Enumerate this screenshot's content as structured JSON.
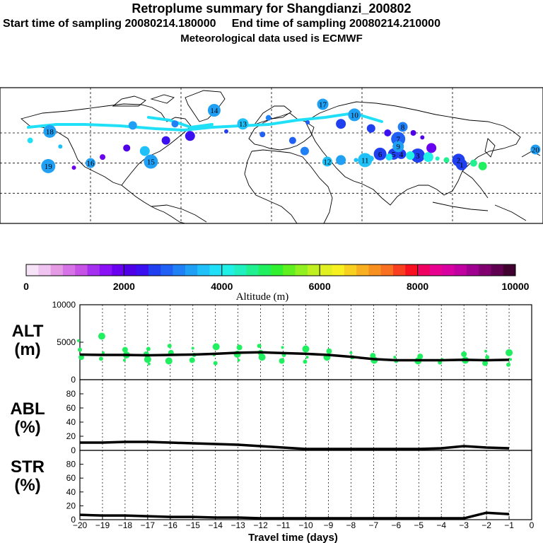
{
  "header": {
    "title": "Retroplume summary for Shangdianzi_200802",
    "sampling_line": "Start time of sampling 20080214.180000     End time of sampling 20080214.210000",
    "met_line": "Meteorological data used is ECMWF"
  },
  "colorbar": {
    "tick_labels": [
      "0",
      "2000",
      "4000",
      "6000",
      "8000",
      "10000"
    ],
    "label": "Altitude (m)",
    "colors": [
      "#f7e3f7",
      "#f0c4f0",
      "#e49be4",
      "#d673e6",
      "#c653e6",
      "#a630f0",
      "#8a10f5",
      "#6a00f0",
      "#5000e6",
      "#3a10f0",
      "#2040f0",
      "#2060f5",
      "#2080f5",
      "#20a0f5",
      "#20c0f8",
      "#20e0f8",
      "#20f0e6",
      "#20f0c0",
      "#20f090",
      "#20f060",
      "#30f030",
      "#60f020",
      "#90f020",
      "#c0f020",
      "#e0f020",
      "#f8f020",
      "#f8d020",
      "#f8b020",
      "#f89020",
      "#f87020",
      "#f84020",
      "#f81020",
      "#f00060",
      "#e80090",
      "#d800a0",
      "#c000a0",
      "#a00090",
      "#800070",
      "#600050",
      "#400030"
    ]
  },
  "map": {
    "cluster_labels": [
      {
        "t": "1",
        "lon": 126,
        "lat": 39
      },
      {
        "t": "2",
        "lon": 124,
        "lat": 42
      },
      {
        "t": "3",
        "lon": 97,
        "lat": 45
      },
      {
        "t": "4",
        "lon": 86,
        "lat": 46
      },
      {
        "t": "5",
        "lon": 81,
        "lat": 46
      },
      {
        "t": "6",
        "lon": 72,
        "lat": 46
      },
      {
        "t": "7",
        "lon": 84,
        "lat": 56
      },
      {
        "t": "8",
        "lon": 87,
        "lat": 64
      },
      {
        "t": "9",
        "lon": 84,
        "lat": 51
      },
      {
        "t": "10",
        "lon": 55,
        "lat": 72
      },
      {
        "t": "11",
        "lon": 62,
        "lat": 42
      },
      {
        "t": "12",
        "lon": 37,
        "lat": 41
      },
      {
        "t": "13",
        "lon": -19,
        "lat": 66
      },
      {
        "t": "14",
        "lon": -38,
        "lat": 75
      },
      {
        "t": "15",
        "lon": -80,
        "lat": 41
      },
      {
        "t": "16",
        "lon": -120,
        "lat": 40
      },
      {
        "t": "17",
        "lon": 34,
        "lat": 79
      },
      {
        "t": "18",
        "lon": -147,
        "lat": 61
      },
      {
        "t": "19",
        "lon": -148,
        "lat": 38
      },
      {
        "t": "20",
        "lon": 175,
        "lat": 49
      }
    ]
  },
  "panels": {
    "alt": {
      "label_line1": "ALT",
      "label_line2": "(m)",
      "y_ticks": [
        "10000",
        "5000",
        "0"
      ],
      "ylim": [
        0,
        10000
      ]
    },
    "abl": {
      "label_line1": "ABL",
      "label_line2": "(%)",
      "y_ticks": [
        "80",
        "60",
        "40",
        "20",
        "0"
      ],
      "ylim": [
        0,
        100
      ]
    },
    "str": {
      "label_line1": "STR",
      "label_line2": "(%)",
      "y_ticks": [
        "80",
        "60",
        "40",
        "20",
        "0"
      ],
      "ylim": [
        0,
        100
      ]
    }
  },
  "x_axis": {
    "ticks": [
      "−20",
      "−19",
      "−18",
      "−17",
      "−16",
      "−15",
      "−14",
      "−13",
      "−12",
      "−11",
      "−10",
      "−9",
      "−8",
      "−7",
      "−6",
      "−5",
      "−4",
      "−3",
      "−2",
      "−1",
      "0"
    ],
    "label": "Travel time (days)",
    "xlim": [
      -20,
      0
    ]
  },
  "chart_data": {
    "type": "line",
    "title": "Retroplume summary for Shangdianzi_200802",
    "xlabel": "Travel time (days)",
    "x": [
      -20,
      -19,
      -18,
      -17,
      -16,
      -15,
      -14,
      -13,
      -12,
      -11,
      -10,
      -9,
      -8,
      -7,
      -6,
      -5,
      -4,
      -3,
      -2,
      -1
    ],
    "series": [
      {
        "name": "ALT mean (m)",
        "values": [
          3350,
          3300,
          3300,
          3250,
          3300,
          3350,
          3450,
          3600,
          3650,
          3550,
          3450,
          3300,
          3050,
          2750,
          2600,
          2600,
          2600,
          2650,
          2600,
          2650
        ]
      },
      {
        "name": "ABL (%)",
        "values": [
          11,
          11,
          12,
          12,
          11,
          10,
          9,
          8,
          6,
          4,
          2,
          2,
          2,
          2,
          2,
          2,
          3,
          6,
          4,
          3
        ]
      },
      {
        "name": "STR (%)",
        "values": [
          7,
          6,
          6,
          5,
          4,
          4,
          3,
          3,
          2,
          2,
          2,
          2,
          2,
          2,
          2,
          2,
          2,
          2,
          10,
          8
        ]
      }
    ],
    "alt_scatter": {
      "x": [
        -20,
        -20,
        -20,
        -19,
        -19,
        -19,
        -18,
        -18,
        -18,
        -17,
        -17,
        -17,
        -17,
        -16,
        -16,
        -16,
        -15,
        -15,
        -15,
        -14,
        -14,
        -14,
        -13,
        -13,
        -13,
        -12,
        -12,
        -12,
        -11,
        -11,
        -11,
        -10,
        -10,
        -10,
        -9,
        -9,
        -8,
        -8,
        -7,
        -7,
        -6,
        -6,
        -5,
        -5,
        -4,
        -4,
        -3,
        -3,
        -2,
        -2,
        -2,
        -1,
        -1,
        -1
      ],
      "y": [
        5200,
        4000,
        3000,
        5800,
        3600,
        2800,
        4000,
        3300,
        2600,
        4100,
        3400,
        2700,
        2100,
        4500,
        3600,
        2500,
        4200,
        3300,
        2600,
        4400,
        3300,
        2200,
        4300,
        3400,
        2600,
        4500,
        3600,
        3000,
        4300,
        3300,
        2500,
        4100,
        3000,
        2400,
        3800,
        3000,
        3600,
        3000,
        3200,
        2600,
        3000,
        2500,
        3100,
        2500,
        2700,
        2300,
        3400,
        2600,
        3800,
        3000,
        2200,
        3600,
        2700,
        2000
      ]
    },
    "ylim_alt": [
      0,
      10000
    ],
    "ylim_pct": [
      0,
      100
    ],
    "xlim": [
      -20,
      0
    ]
  }
}
